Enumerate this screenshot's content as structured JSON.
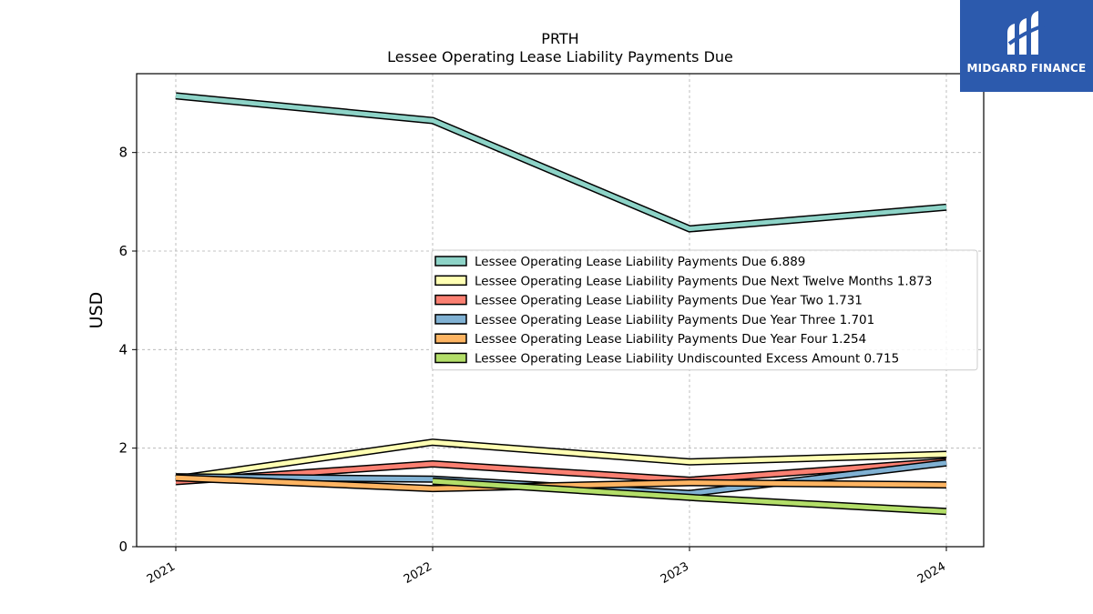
{
  "brand": {
    "name": "MIDGARD FINANCE",
    "bg_color": "#2c5aad"
  },
  "chart_data": {
    "type": "line",
    "title": "PRTH",
    "subtitle": "Lessee Operating Lease Liability Payments Due",
    "xlabel": "",
    "ylabel": "USD",
    "x": [
      "2021",
      "2022",
      "2023",
      "2024"
    ],
    "ylim": [
      0,
      9.6
    ],
    "yticks": [
      0,
      2,
      4,
      6,
      8
    ],
    "grid": true,
    "legend_position": "center-right",
    "series": [
      {
        "name": "Lessee Operating Lease Liability Payments Due",
        "legend_value": "6.889",
        "color": "#8dd3c7",
        "values": [
          9.15,
          8.65,
          6.45,
          6.889
        ]
      },
      {
        "name": "Lessee Operating Lease Liability Payments Due Next Twelve Months",
        "legend_value": "1.873",
        "color": "#ffffb3",
        "values": [
          1.38,
          2.12,
          1.72,
          1.873
        ]
      },
      {
        "name": "Lessee Operating Lease Liability Payments Due Year Two",
        "legend_value": "1.731",
        "color": "#fb8072",
        "values": [
          1.32,
          1.68,
          1.35,
          1.731
        ]
      },
      {
        "name": "Lessee Operating Lease Liability Payments Due Year Three",
        "legend_value": "1.701",
        "color": "#80b1d3",
        "values": [
          1.42,
          1.37,
          1.08,
          1.701
        ]
      },
      {
        "name": "Lessee Operating Lease Liability Payments Due Year Four",
        "legend_value": "1.254",
        "color": "#fdb462",
        "values": [
          1.4,
          1.18,
          1.3,
          1.254
        ]
      },
      {
        "name": "Lessee Operating Lease Liability Undiscounted Excess Amount",
        "legend_value": "0.715",
        "color": "#b3de69",
        "values": [
          null,
          1.33,
          1.0,
          0.715
        ]
      }
    ]
  }
}
